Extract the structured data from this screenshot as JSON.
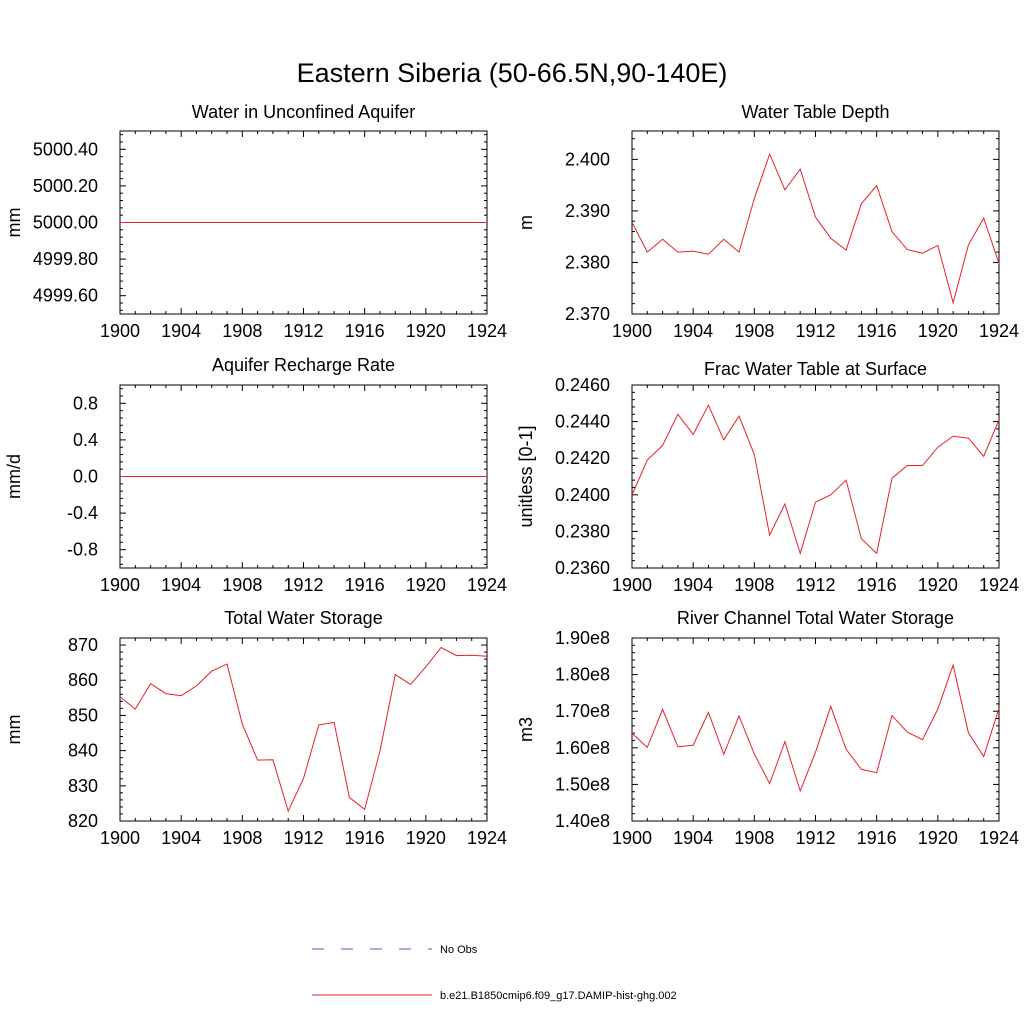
{
  "figure": {
    "title": "Eastern Siberia (50-66.5N,90-140E)"
  },
  "colors": {
    "model_line": "#e8202a",
    "obs_line": "#4a5fc1",
    "axis": "#000000"
  },
  "legend": {
    "placement": "bottom-center",
    "entries": [
      {
        "label": "No Obs",
        "style": "dashed",
        "color": "#4a5fc1"
      },
      {
        "label": "b.e21.B1850cmip6.f09_g17.DAMIP-hist-ghg.002",
        "style": "solid",
        "color": "#e8202a"
      }
    ]
  },
  "chart_data": [
    {
      "type": "line",
      "title": "Water in Unconfined Aquifer",
      "ylabel": "mm",
      "xlim": [
        1900,
        1924
      ],
      "ylim": [
        4999.5,
        5000.5
      ],
      "xticks": [
        1900,
        1904,
        1908,
        1912,
        1916,
        1920,
        1924
      ],
      "xtick_labels": [
        "1900",
        "1904",
        "1908",
        "1912",
        "1916",
        "1920",
        "1924"
      ],
      "yticks": [
        4999.6,
        4999.8,
        5000.0,
        5000.2,
        5000.4
      ],
      "ytick_labels": [
        "4999.60",
        "4999.80",
        "5000.00",
        "5000.20",
        "5000.40"
      ],
      "series": [
        {
          "x": [
            1900,
            1901,
            1902,
            1903,
            1904,
            1905,
            1906,
            1907,
            1908,
            1909,
            1910,
            1911,
            1912,
            1913,
            1914,
            1915,
            1916,
            1917,
            1918,
            1919,
            1920,
            1921,
            1922,
            1923,
            1924
          ],
          "values": [
            5000,
            5000,
            5000,
            5000,
            5000,
            5000,
            5000,
            5000,
            5000,
            5000,
            5000,
            5000,
            5000,
            5000,
            5000,
            5000,
            5000,
            5000,
            5000,
            5000,
            5000,
            5000,
            5000,
            5000,
            5000
          ]
        }
      ]
    },
    {
      "type": "line",
      "title": "Water Table Depth",
      "ylabel": "m",
      "xlim": [
        1900,
        1924
      ],
      "ylim": [
        2.37,
        2.4055
      ],
      "xticks": [
        1900,
        1904,
        1908,
        1912,
        1916,
        1920,
        1924
      ],
      "xtick_labels": [
        "1900",
        "1904",
        "1908",
        "1912",
        "1916",
        "1920",
        "1924"
      ],
      "yticks": [
        2.37,
        2.38,
        2.39,
        2.4
      ],
      "ytick_labels": [
        "2.370",
        "2.380",
        "2.390",
        "2.400"
      ],
      "series": [
        {
          "x": [
            1900,
            1901,
            1902,
            1903,
            1904,
            1905,
            1906,
            1907,
            1908,
            1909,
            1910,
            1911,
            1912,
            1913,
            1914,
            1915,
            1916,
            1917,
            1918,
            1919,
            1920,
            1921,
            1922,
            1923,
            1924
          ],
          "values": [
            2.3878,
            2.382,
            2.3845,
            2.382,
            2.3822,
            2.3816,
            2.3845,
            2.382,
            2.3924,
            2.401,
            2.3941,
            2.3981,
            2.3888,
            2.3847,
            2.3824,
            2.3914,
            2.3949,
            2.386,
            2.3825,
            2.3818,
            2.3833,
            2.3722,
            2.3834,
            2.3886,
            2.3798
          ]
        }
      ]
    },
    {
      "type": "line",
      "title": "Aquifer Recharge Rate",
      "ylabel": "mm/d",
      "xlim": [
        1900,
        1924
      ],
      "ylim": [
        -1.0,
        1.0
      ],
      "xticks": [
        1900,
        1904,
        1908,
        1912,
        1916,
        1920,
        1924
      ],
      "xtick_labels": [
        "1900",
        "1904",
        "1908",
        "1912",
        "1916",
        "1920",
        "1924"
      ],
      "yticks": [
        -0.8,
        -0.4,
        0.0,
        0.4,
        0.8
      ],
      "ytick_labels": [
        "-0.8",
        "-0.4",
        "0.0",
        "0.4",
        "0.8"
      ],
      "series": [
        {
          "x": [
            1900,
            1901,
            1902,
            1903,
            1904,
            1905,
            1906,
            1907,
            1908,
            1909,
            1910,
            1911,
            1912,
            1913,
            1914,
            1915,
            1916,
            1917,
            1918,
            1919,
            1920,
            1921,
            1922,
            1923,
            1924
          ],
          "values": [
            0,
            0,
            0,
            0,
            0,
            0,
            0,
            0,
            0,
            0,
            0,
            0,
            0,
            0,
            0,
            0,
            0,
            0,
            0,
            0,
            0,
            0,
            0,
            0,
            0
          ]
        }
      ]
    },
    {
      "type": "line",
      "title": "Frac Water Table at Surface",
      "ylabel": "unitless [0-1]",
      "xlim": [
        1900,
        1924
      ],
      "ylim": [
        0.236,
        0.246
      ],
      "xticks": [
        1900,
        1904,
        1908,
        1912,
        1916,
        1920,
        1924
      ],
      "xtick_labels": [
        "1900",
        "1904",
        "1908",
        "1912",
        "1916",
        "1920",
        "1924"
      ],
      "yticks": [
        0.236,
        0.238,
        0.24,
        0.242,
        0.244,
        0.246
      ],
      "ytick_labels": [
        "0.2360",
        "0.2380",
        "0.2400",
        "0.2420",
        "0.2440",
        "0.2460"
      ],
      "series": [
        {
          "x": [
            1900,
            1901,
            1902,
            1903,
            1904,
            1905,
            1906,
            1907,
            1908,
            1909,
            1910,
            1911,
            1912,
            1913,
            1914,
            1915,
            1916,
            1917,
            1918,
            1919,
            1920,
            1921,
            1922,
            1923,
            1924
          ],
          "values": [
            0.24,
            0.2419,
            0.2427,
            0.2444,
            0.2433,
            0.2449,
            0.243,
            0.2443,
            0.2422,
            0.2378,
            0.2395,
            0.2368,
            0.2396,
            0.24,
            0.2408,
            0.2376,
            0.2368,
            0.2409,
            0.2416,
            0.2416,
            0.2426,
            0.2432,
            0.2431,
            0.2421,
            0.2441
          ]
        }
      ]
    },
    {
      "type": "line",
      "title": "Total Water Storage",
      "ylabel": "mm",
      "xlim": [
        1900,
        1924
      ],
      "ylim": [
        820,
        872
      ],
      "xticks": [
        1900,
        1904,
        1908,
        1912,
        1916,
        1920,
        1924
      ],
      "xtick_labels": [
        "1900",
        "1904",
        "1908",
        "1912",
        "1916",
        "1920",
        "1924"
      ],
      "yticks": [
        820,
        830,
        840,
        850,
        860,
        870
      ],
      "ytick_labels": [
        "820",
        "830",
        "840",
        "850",
        "860",
        "870"
      ],
      "series": [
        {
          "x": [
            1900,
            1901,
            1902,
            1903,
            1904,
            1905,
            1906,
            1907,
            1908,
            1909,
            1910,
            1911,
            1912,
            1913,
            1914,
            1915,
            1916,
            1917,
            1918,
            1919,
            1920,
            1921,
            1922,
            1923,
            1924
          ],
          "values": [
            855.3,
            851.8,
            859.0,
            856.2,
            855.6,
            858.4,
            862.6,
            864.6,
            847.5,
            837.3,
            837.4,
            822.8,
            832.1,
            847.3,
            848.0,
            826.7,
            823.3,
            839.9,
            861.6,
            858.8,
            863.8,
            869.3,
            867.0,
            867.1,
            866.8
          ]
        }
      ]
    },
    {
      "type": "line",
      "title": "River Channel Total Water Storage",
      "ylabel": "m3",
      "xlim": [
        1900,
        1924
      ],
      "ylim": [
        140000000,
        190000000
      ],
      "xticks": [
        1900,
        1904,
        1908,
        1912,
        1916,
        1920,
        1924
      ],
      "xtick_labels": [
        "1900",
        "1904",
        "1908",
        "1912",
        "1916",
        "1920",
        "1924"
      ],
      "yticks": [
        140000000,
        150000000,
        160000000,
        170000000,
        180000000,
        190000000
      ],
      "ytick_labels": [
        "1.40e8",
        "1.50e8",
        "1.60e8",
        "1.70e8",
        "1.80e8",
        "1.90e8"
      ],
      "series": [
        {
          "x": [
            1900,
            1901,
            1902,
            1903,
            1904,
            1905,
            1906,
            1907,
            1908,
            1909,
            1910,
            1911,
            1912,
            1913,
            1914,
            1915,
            1916,
            1917,
            1918,
            1919,
            1920,
            1921,
            1922,
            1923,
            1924
          ],
          "values": [
            164000000,
            160100000,
            170500000,
            160300000,
            160700000,
            169700000,
            158200000,
            168700000,
            158300000,
            150200000,
            161700000,
            148200000,
            158800000,
            171300000,
            159600000,
            154100000,
            153200000,
            168800000,
            164300000,
            162200000,
            170600000,
            182600000,
            164100000,
            157600000,
            170800000
          ]
        }
      ]
    }
  ]
}
